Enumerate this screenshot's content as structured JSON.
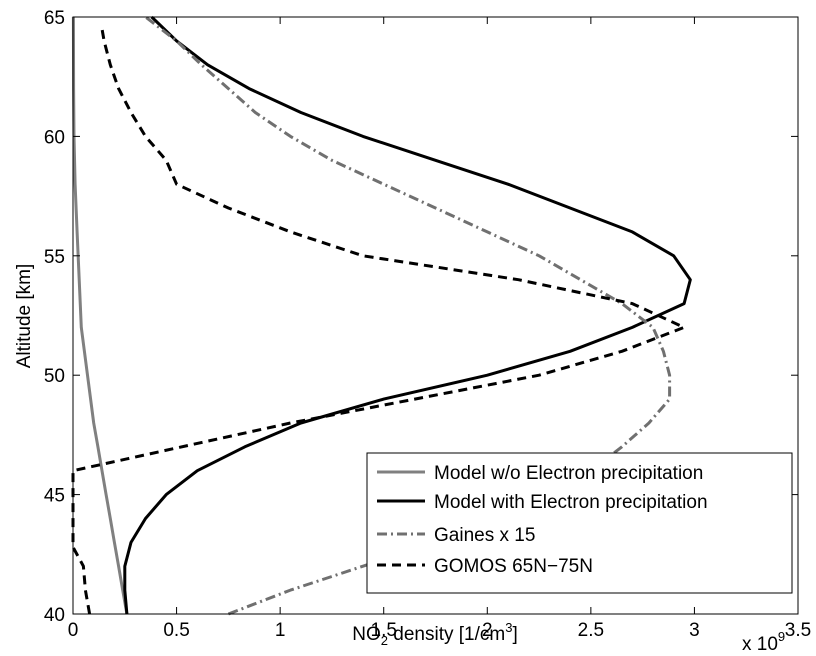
{
  "chart_data": {
    "type": "line",
    "title": "",
    "xlabel": {
      "main": "NO",
      "sub": "2",
      "rest": " density [1/cm",
      "sup": "3",
      "close": "]"
    },
    "ylabel": "Altitude [km]",
    "x_multiplier_label": {
      "base": "x 10",
      "exp": "9"
    },
    "xlim": [
      0,
      3.5
    ],
    "ylim": [
      40,
      65
    ],
    "x_ticks": [
      0,
      0.5,
      1,
      1.5,
      2,
      2.5,
      3,
      3.5
    ],
    "x_tick_labels": [
      "0",
      "0.5",
      "1",
      "1.5",
      "2",
      "2.5",
      "3",
      "3.5"
    ],
    "y_ticks": [
      40,
      45,
      50,
      55,
      60,
      65
    ],
    "y_tick_labels": [
      "40",
      "45",
      "50",
      "55",
      "60",
      "65"
    ],
    "grid": false,
    "legend_position": "bottom-right",
    "series": [
      {
        "name": "Model w/o Electron precipitation",
        "color": "#808080",
        "dash": "solid",
        "points": [
          [
            0.26,
            40
          ],
          [
            0.24,
            41
          ],
          [
            0.22,
            42
          ],
          [
            0.2,
            43
          ],
          [
            0.18,
            44
          ],
          [
            0.16,
            45
          ],
          [
            0.14,
            46
          ],
          [
            0.12,
            47
          ],
          [
            0.1,
            48
          ],
          [
            0.085,
            49
          ],
          [
            0.07,
            50
          ],
          [
            0.055,
            51
          ],
          [
            0.04,
            52
          ],
          [
            0.03,
            54
          ],
          [
            0.02,
            56
          ],
          [
            0.01,
            58
          ],
          [
            0.005,
            60
          ],
          [
            0.003,
            62
          ],
          [
            0.002,
            65
          ]
        ]
      },
      {
        "name": "Model with Electron precipitation",
        "color": "#000000",
        "dash": "solid",
        "points": [
          [
            0.26,
            40
          ],
          [
            0.25,
            41
          ],
          [
            0.25,
            42
          ],
          [
            0.28,
            43
          ],
          [
            0.35,
            44
          ],
          [
            0.45,
            45
          ],
          [
            0.6,
            46
          ],
          [
            0.83,
            47
          ],
          [
            1.1,
            48
          ],
          [
            1.5,
            49
          ],
          [
            2.0,
            50
          ],
          [
            2.4,
            51
          ],
          [
            2.7,
            52
          ],
          [
            2.95,
            53
          ],
          [
            2.98,
            54
          ],
          [
            2.9,
            55
          ],
          [
            2.7,
            56
          ],
          [
            2.4,
            57
          ],
          [
            2.1,
            58
          ],
          [
            1.75,
            59
          ],
          [
            1.4,
            60
          ],
          [
            1.1,
            61
          ],
          [
            0.85,
            62
          ],
          [
            0.65,
            63
          ],
          [
            0.5,
            64
          ],
          [
            0.38,
            65
          ]
        ]
      },
      {
        "name": "Gaines x 15",
        "color": "#707070",
        "dash": "dashdot",
        "points": [
          [
            0.75,
            40
          ],
          [
            1.05,
            41
          ],
          [
            1.4,
            42
          ],
          [
            1.75,
            43
          ],
          [
            2.05,
            44
          ],
          [
            2.3,
            45
          ],
          [
            2.5,
            46
          ],
          [
            2.65,
            47
          ],
          [
            2.78,
            48
          ],
          [
            2.88,
            49
          ],
          [
            2.88,
            50
          ],
          [
            2.85,
            51
          ],
          [
            2.8,
            52
          ],
          [
            2.65,
            53
          ],
          [
            2.45,
            54
          ],
          [
            2.25,
            55
          ],
          [
            2.0,
            56
          ],
          [
            1.75,
            57
          ],
          [
            1.5,
            58
          ],
          [
            1.25,
            59
          ],
          [
            1.05,
            60
          ],
          [
            0.88,
            61
          ],
          [
            0.75,
            62
          ],
          [
            0.62,
            63
          ],
          [
            0.5,
            64
          ],
          [
            0.35,
            65
          ]
        ]
      },
      {
        "name": "GOMOS 65N−75N",
        "color": "#000000",
        "dash": "dashed",
        "points": [
          [
            0.08,
            40
          ],
          [
            0.06,
            41
          ],
          [
            0.05,
            42
          ],
          [
            0.0,
            42.8
          ],
          [
            0.0,
            46
          ],
          [
            1.05,
            48
          ],
          [
            1.65,
            49
          ],
          [
            2.25,
            50
          ],
          [
            2.65,
            51
          ],
          [
            2.95,
            52
          ],
          [
            2.7,
            53
          ],
          [
            2.15,
            54
          ],
          [
            1.4,
            55
          ],
          [
            1.05,
            56
          ],
          [
            0.75,
            57
          ],
          [
            0.5,
            58
          ],
          [
            0.45,
            59
          ],
          [
            0.35,
            60
          ],
          [
            0.28,
            61
          ],
          [
            0.22,
            62
          ],
          [
            0.18,
            63
          ],
          [
            0.15,
            64
          ],
          [
            0.14,
            64.5
          ]
        ]
      }
    ]
  }
}
